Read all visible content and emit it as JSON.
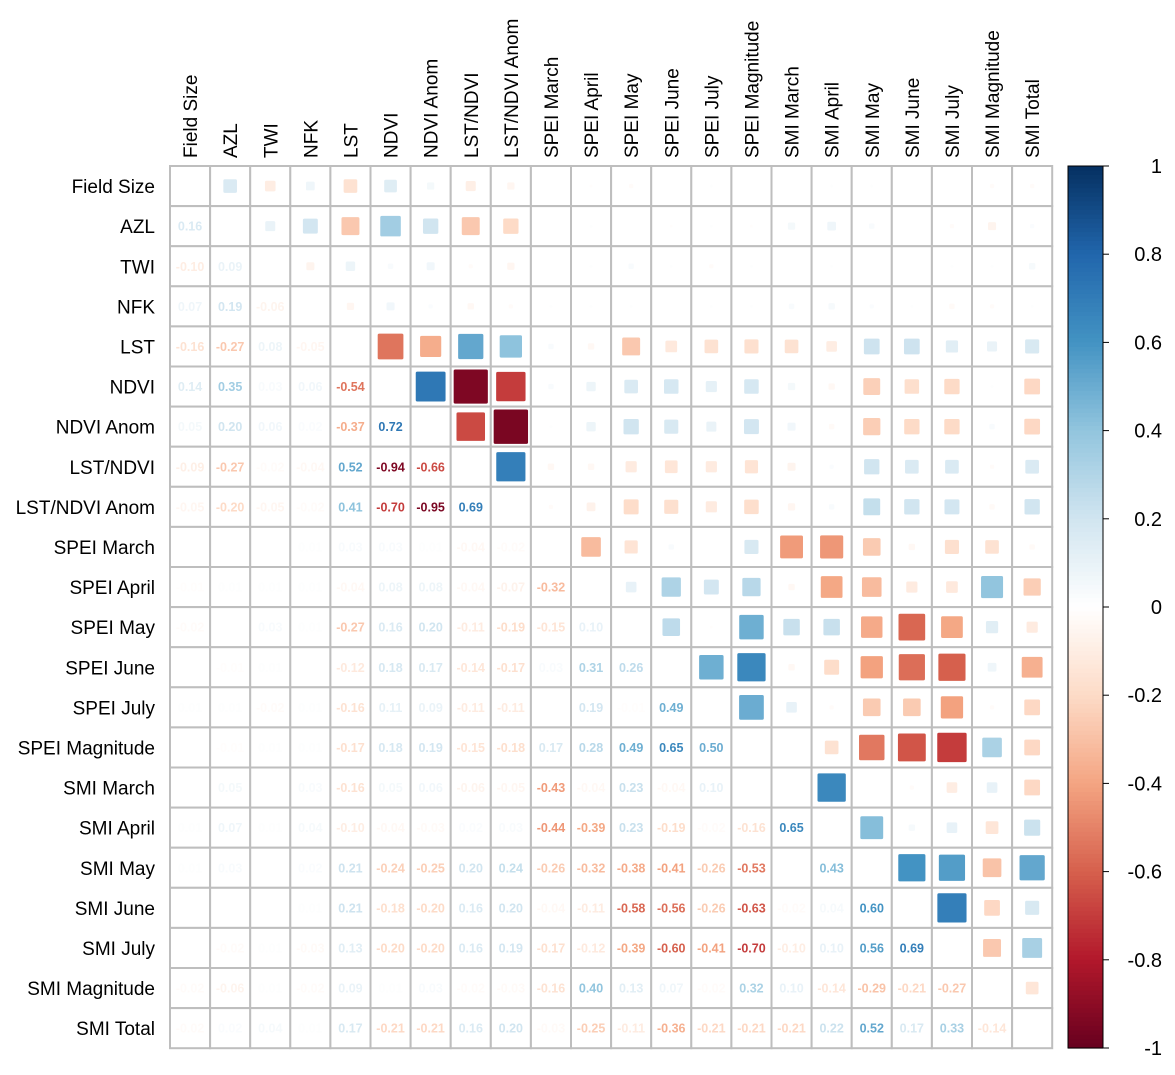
{
  "chart_data": {
    "type": "heatmap",
    "method": "mixed: lower triangle numbers, upper triangle squares",
    "variables": [
      "Field Size",
      "AZL",
      "TWI",
      "NFK",
      "LST",
      "NDVI",
      "NDVI Anom",
      "LST/NDVI",
      "LST/NDVI Anom",
      "SPEI March",
      "SPEI April",
      "SPEI May",
      "SPEI June",
      "SPEI July",
      "SPEI Magnitude",
      "SMI March",
      "SMI April",
      "SMI May",
      "SMI June",
      "SMI July",
      "SMI Magnitude",
      "SMI Total"
    ],
    "lower_triangle": [
      [],
      [
        0.16
      ],
      [
        -0.1,
        0.09
      ],
      [
        0.07,
        0.19,
        -0.06
      ],
      [
        -0.16,
        -0.27,
        0.08,
        -0.05
      ],
      [
        0.14,
        0.35,
        0.03,
        0.06,
        -0.54
      ],
      [
        0.05,
        0.2,
        0.06,
        0.02,
        -0.37,
        0.72
      ],
      [
        -0.09,
        -0.27,
        -0.02,
        -0.04,
        0.52,
        -0.94,
        -0.66
      ],
      [
        -0.05,
        -0.2,
        -0.05,
        -0.02,
        0.41,
        -0.7,
        -0.95,
        0.69
      ],
      [
        0.0,
        0.0,
        0.0,
        0.01,
        0.03,
        0.03,
        0.01,
        -0.04,
        -0.02
      ],
      [
        -0.01,
        0.01,
        0.01,
        0.01,
        -0.04,
        0.08,
        0.08,
        -0.04,
        -0.07,
        -0.32
      ],
      [
        -0.02,
        0.0,
        0.03,
        0.01,
        -0.27,
        0.16,
        0.2,
        -0.11,
        -0.19,
        -0.15,
        0.1
      ],
      [
        0.0,
        -0.01,
        0.01,
        0.0,
        -0.12,
        0.18,
        0.17,
        -0.14,
        -0.17,
        0.03,
        0.31,
        0.26
      ],
      [
        0.01,
        0.01,
        -0.02,
        0.01,
        -0.16,
        0.11,
        0.09,
        -0.11,
        -0.11,
        0.0,
        0.19,
        -0.01,
        0.49
      ],
      [
        0.0,
        -0.01,
        0.01,
        0.01,
        -0.17,
        0.18,
        0.19,
        -0.15,
        -0.18,
        0.17,
        0.28,
        0.49,
        0.65,
        0.5
      ],
      [
        0.0,
        0.05,
        0.0,
        0.03,
        -0.16,
        0.05,
        0.06,
        -0.06,
        -0.05,
        -0.43,
        -0.04,
        0.23,
        -0.04,
        0.1,
        0.0
      ],
      [
        0.01,
        0.07,
        0.01,
        0.04,
        -0.1,
        -0.04,
        -0.03,
        0.02,
        0.03,
        -0.44,
        -0.39,
        0.23,
        -0.19,
        -0.02,
        -0.16,
        0.65
      ],
      [
        0.01,
        0.03,
        0.0,
        0.02,
        0.21,
        -0.24,
        -0.25,
        0.2,
        0.24,
        -0.26,
        -0.32,
        -0.38,
        -0.41,
        -0.26,
        -0.53,
        0.0,
        0.43
      ],
      [
        0.0,
        0.0,
        0.0,
        0.01,
        0.21,
        -0.18,
        -0.2,
        0.16,
        0.2,
        -0.04,
        -0.11,
        -0.58,
        -0.56,
        -0.26,
        -0.63,
        -0.02,
        0.04,
        0.6
      ],
      [
        0.0,
        -0.02,
        0.01,
        -0.03,
        0.13,
        -0.2,
        -0.2,
        0.16,
        0.19,
        -0.17,
        -0.12,
        -0.39,
        -0.6,
        -0.41,
        -0.7,
        -0.1,
        0.1,
        0.56,
        0.69
      ],
      [
        -0.02,
        -0.06,
        0.01,
        -0.02,
        0.09,
        0.01,
        0.03,
        -0.02,
        -0.03,
        -0.16,
        0.4,
        0.13,
        0.07,
        -0.02,
        0.32,
        0.1,
        -0.14,
        -0.29,
        -0.21,
        -0.27
      ],
      [
        -0.02,
        0.02,
        0.04,
        0.01,
        0.17,
        -0.21,
        -0.21,
        0.16,
        0.2,
        -0.03,
        -0.25,
        -0.11,
        -0.36,
        -0.21,
        -0.21,
        -0.21,
        0.22,
        0.52,
        0.17,
        0.33,
        -0.14
      ]
    ],
    "color_scale": {
      "range": [
        -1,
        1
      ],
      "ticks": [
        "1",
        "0.8",
        "0.6",
        "0.4",
        "0.2",
        "0",
        "-0.2",
        "-0.4",
        "-0.6",
        "-0.8",
        "-1"
      ],
      "colors": [
        "#67001F",
        "#B2182B",
        "#D6604D",
        "#F4A582",
        "#FDDBC7",
        "#FFFFFF",
        "#D1E5F0",
        "#92C5DE",
        "#4393C3",
        "#2166AC",
        "#053061"
      ],
      "legend_placement": "right"
    },
    "grid": true
  }
}
